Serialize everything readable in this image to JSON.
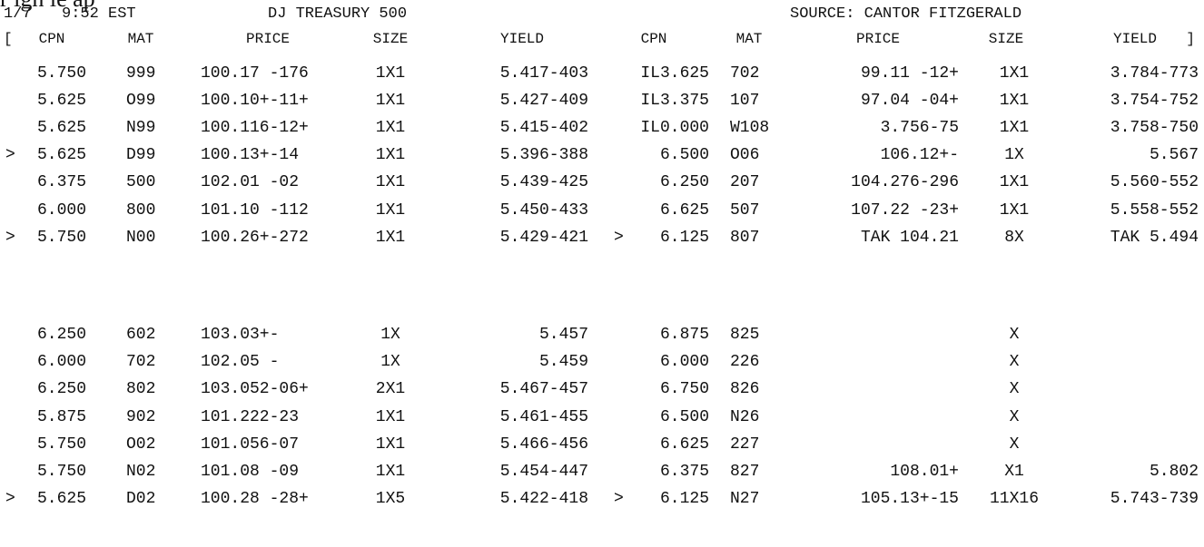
{
  "top_cut_text": "r igh le ap",
  "header": {
    "date": "1/7",
    "time": "9:52 EST",
    "title": "DJ TREASURY 500",
    "source": "SOURCE: CANTOR FITZGERALD",
    "bracket_open": "[",
    "bracket_close": "]"
  },
  "columns": [
    "CPN",
    "MAT",
    "PRICE",
    "SIZE",
    "YIELD",
    "CPN",
    "MAT",
    "PRICE",
    "SIZE",
    "YIELD"
  ],
  "rows_top": [
    {
      "m1": "",
      "cpn1": "5.750",
      "mat1": "999",
      "price1": "100.17 -176",
      "size1": "1X1",
      "yield1": "5.417-403",
      "m2": "",
      "cpn2": "IL3.625",
      "mat2": "702",
      "price2": "99.11 -12+",
      "size2": "1X1",
      "yield2": "3.784-773"
    },
    {
      "m1": "",
      "cpn1": "5.625",
      "mat1": "O99",
      "price1": "100.10+-11+",
      "size1": "1X1",
      "yield1": "5.427-409",
      "m2": "",
      "cpn2": "IL3.375",
      "mat2": "107",
      "price2": "97.04 -04+",
      "size2": "1X1",
      "yield2": "3.754-752"
    },
    {
      "m1": "",
      "cpn1": "5.625",
      "mat1": "N99",
      "price1": "100.116-12+",
      "size1": "1X1",
      "yield1": "5.415-402",
      "m2": "",
      "cpn2": "IL0.000",
      "mat2": "W108",
      "price2": "3.756-75",
      "size2": "1X1",
      "yield2": "3.758-750"
    },
    {
      "m1": ">",
      "cpn1": "5.625",
      "mat1": "D99",
      "price1": "100.13+-14",
      "size1": "1X1",
      "yield1": "5.396-388",
      "m2": "",
      "cpn2": "6.500",
      "mat2": "O06",
      "price2": "106.12+-",
      "size2": "1X",
      "yield2": "5.567"
    },
    {
      "m1": "",
      "cpn1": "6.375",
      "mat1": "500",
      "price1": "102.01 -02",
      "size1": "1X1",
      "yield1": "5.439-425",
      "m2": "",
      "cpn2": "6.250",
      "mat2": "207",
      "price2": "104.276-296",
      "size2": "1X1",
      "yield2": "5.560-552"
    },
    {
      "m1": "",
      "cpn1": "6.000",
      "mat1": "800",
      "price1": "101.10 -112",
      "size1": "1X1",
      "yield1": "5.450-433",
      "m2": "",
      "cpn2": "6.625",
      "mat2": "507",
      "price2": "107.22 -23+",
      "size2": "1X1",
      "yield2": "5.558-552"
    },
    {
      "m1": ">",
      "cpn1": "5.750",
      "mat1": "N00",
      "price1": "100.26+-272",
      "size1": "1X1",
      "yield1": "5.429-421",
      "m2": ">",
      "cpn2": "6.125",
      "mat2": "807",
      "price2": "TAK 104.21",
      "size2": "8X",
      "yield2": "TAK 5.494"
    }
  ],
  "rows_bottom": [
    {
      "m1": "",
      "cpn1": "6.250",
      "mat1": "602",
      "price1": "103.03+-",
      "size1": "1X",
      "yield1": "5.457",
      "m2": "",
      "cpn2": "6.875",
      "mat2": "825",
      "price2": "",
      "size2": "X",
      "yield2": ""
    },
    {
      "m1": "",
      "cpn1": "6.000",
      "mat1": "702",
      "price1": "102.05 -",
      "size1": "1X",
      "yield1": "5.459",
      "m2": "",
      "cpn2": "6.000",
      "mat2": "226",
      "price2": "",
      "size2": "X",
      "yield2": ""
    },
    {
      "m1": "",
      "cpn1": "6.250",
      "mat1": "802",
      "price1": "103.052-06+",
      "size1": "2X1",
      "yield1": "5.467-457",
      "m2": "",
      "cpn2": "6.750",
      "mat2": "826",
      "price2": "",
      "size2": "X",
      "yield2": ""
    },
    {
      "m1": "",
      "cpn1": "5.875",
      "mat1": "902",
      "price1": "101.222-23",
      "size1": "1X1",
      "yield1": "5.461-455",
      "m2": "",
      "cpn2": "6.500",
      "mat2": "N26",
      "price2": "",
      "size2": "X",
      "yield2": ""
    },
    {
      "m1": "",
      "cpn1": "5.750",
      "mat1": "O02",
      "price1": "101.056-07",
      "size1": "1X1",
      "yield1": "5.466-456",
      "m2": "",
      "cpn2": "6.625",
      "mat2": "227",
      "price2": "",
      "size2": "X",
      "yield2": ""
    },
    {
      "m1": "",
      "cpn1": "5.750",
      "mat1": "N02",
      "price1": "101.08 -09",
      "size1": "1X1",
      "yield1": "5.454-447",
      "m2": "",
      "cpn2": "6.375",
      "mat2": "827",
      "price2": "108.01+",
      "size2": "X1",
      "yield2": "5.802"
    },
    {
      "m1": ">",
      "cpn1": "5.625",
      "mat1": "D02",
      "price1": "100.28 -28+",
      "size1": "1X5",
      "yield1": "5.422-418",
      "m2": ">",
      "cpn2": "6.125",
      "mat2": "N27",
      "price2": "105.13+-15",
      "size2": "11X16",
      "yield2": "5.743-739"
    }
  ]
}
